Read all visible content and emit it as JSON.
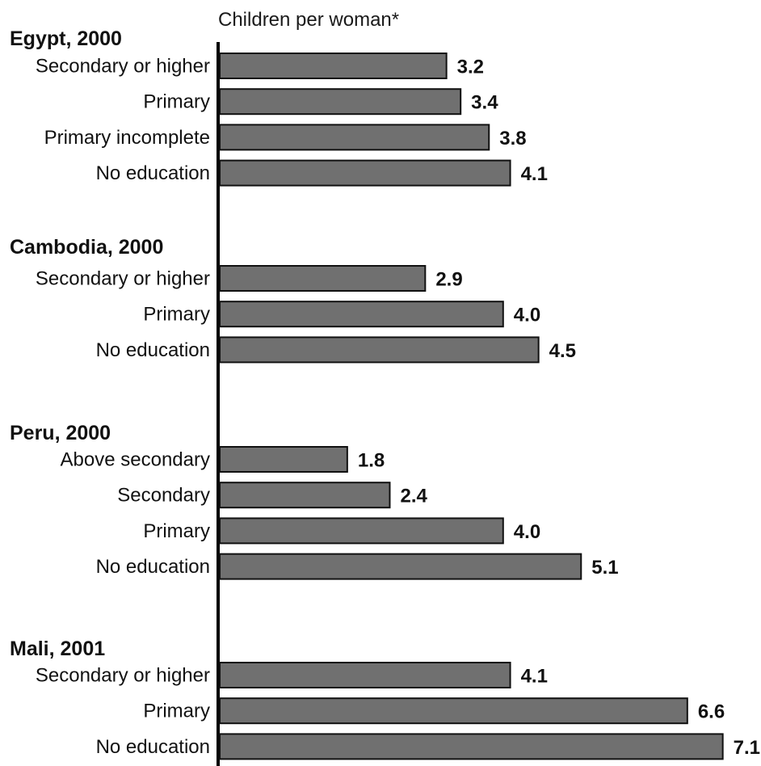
{
  "chart_data": {
    "type": "bar",
    "orientation": "horizontal",
    "xlabel": "Children per woman*",
    "colors": {
      "bar": "#707070",
      "bar_stroke": "#111111",
      "axis": "#000000"
    },
    "groups": [
      {
        "title": "Egypt, 2000",
        "categories": [
          "Secondary or higher",
          "Primary",
          "Primary incomplete",
          "No education"
        ],
        "values": [
          3.2,
          3.4,
          3.8,
          4.1
        ],
        "value_labels": [
          "3.2",
          "3.4",
          "3.8",
          "4.1"
        ]
      },
      {
        "title": "Cambodia, 2000",
        "categories": [
          "Secondary or higher",
          "Primary",
          "No education"
        ],
        "values": [
          2.9,
          4.0,
          4.5
        ],
        "value_labels": [
          "2.9",
          "4.0",
          "4.5"
        ]
      },
      {
        "title": "Peru, 2000",
        "categories": [
          "Above secondary",
          "Secondary",
          "Primary",
          "No education"
        ],
        "values": [
          1.8,
          2.4,
          4.0,
          5.1
        ],
        "value_labels": [
          "1.8",
          "2.4",
          "4.0",
          "5.1"
        ]
      },
      {
        "title": "Mali, 2001",
        "categories": [
          "Secondary or higher",
          "Primary",
          "No education"
        ],
        "values": [
          4.1,
          6.6,
          7.1
        ],
        "value_labels": [
          "4.1",
          "6.6",
          "7.1"
        ]
      }
    ]
  }
}
